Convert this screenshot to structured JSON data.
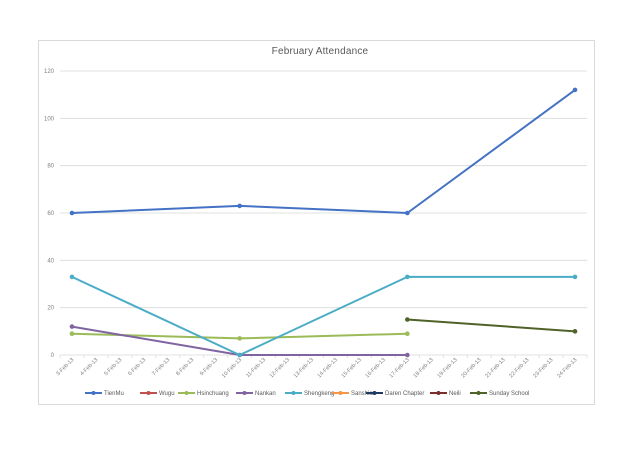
{
  "chart_data": {
    "type": "line",
    "title": "February  Attendance",
    "xlabel": "",
    "ylabel": "",
    "ylim": [
      0,
      120
    ],
    "yticks": [
      0,
      20,
      40,
      60,
      80,
      100,
      120
    ],
    "grid": true,
    "legend_position": "bottom",
    "categories": [
      "3-Feb-13",
      "4-Feb-13",
      "5-Feb-13",
      "6-Feb-13",
      "7-Feb-13",
      "8-Feb-13",
      "9-Feb-13",
      "10-Feb-13",
      "11-Feb-13",
      "12-Feb-13",
      "13-Feb-13",
      "14-Feb-13",
      "15-Feb-13",
      "16-Feb-13",
      "17-Feb-13",
      "18-Feb-13",
      "19-Feb-13",
      "20-Feb-13",
      "21-Feb-13",
      "22-Feb-13",
      "23-Feb-13",
      "24-Feb-13"
    ],
    "series": [
      {
        "name": "TienMu",
        "color": "#4472c4",
        "points": [
          [
            0,
            60
          ],
          [
            7,
            63
          ],
          [
            14,
            60
          ],
          [
            21,
            112
          ]
        ]
      },
      {
        "name": "Wugu",
        "color": "#c0504d",
        "points": []
      },
      {
        "name": "Hsinchuang",
        "color": "#9bbb59",
        "points": [
          [
            0,
            9
          ],
          [
            7,
            7
          ],
          [
            14,
            9
          ]
        ]
      },
      {
        "name": "Nankan",
        "color": "#8064a2",
        "points": [
          [
            0,
            12
          ],
          [
            7,
            0
          ],
          [
            14,
            0
          ]
        ]
      },
      {
        "name": "Shengkeng",
        "color": "#4bacc6",
        "points": [
          [
            0,
            33
          ],
          [
            7,
            0
          ],
          [
            14,
            33
          ],
          [
            21,
            33
          ]
        ]
      },
      {
        "name": "Sanshia",
        "color": "#f79646",
        "points": []
      },
      {
        "name": "Daren Chapter",
        "color": "#1f3864",
        "points": []
      },
      {
        "name": "Neili",
        "color": "#7b2c2c",
        "points": []
      },
      {
        "name": "Sunday School",
        "color": "#4f6228",
        "points": [
          [
            14,
            15
          ],
          [
            21,
            10
          ]
        ]
      }
    ]
  }
}
